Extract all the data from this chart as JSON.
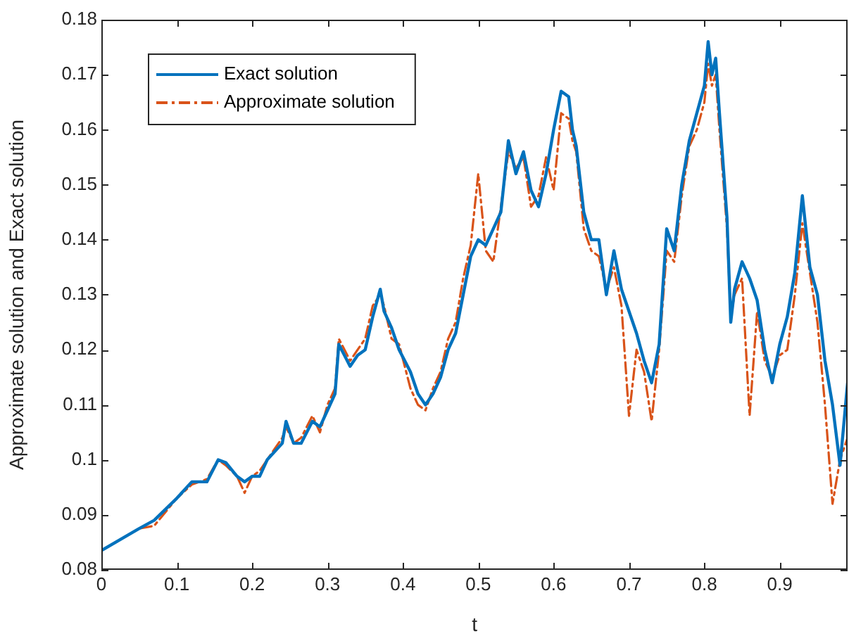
{
  "chart_data": {
    "type": "line",
    "xlabel": "t",
    "ylabel": "Approximate solution and Exact solution",
    "xlim": [
      0,
      0.99
    ],
    "xticks": [
      0,
      0.1,
      0.2,
      0.3,
      0.4,
      0.5,
      0.6,
      0.7,
      0.8,
      0.9
    ],
    "ylim": [
      0.08,
      0.18
    ],
    "yticks": [
      0.08,
      0.09,
      0.1,
      0.11,
      0.12,
      0.13,
      0.14,
      0.15,
      0.16,
      0.17,
      0.18
    ],
    "grid": false,
    "legend": "top left",
    "marker": "none",
    "x": [
      0,
      0.05,
      0.07,
      0.1,
      0.12,
      0.14,
      0.155,
      0.165,
      0.18,
      0.19,
      0.2,
      0.21,
      0.22,
      0.24,
      0.245,
      0.255,
      0.265,
      0.28,
      0.29,
      0.3,
      0.31,
      0.315,
      0.33,
      0.34,
      0.35,
      0.36,
      0.37,
      0.375,
      0.385,
      0.395,
      0.41,
      0.42,
      0.43,
      0.44,
      0.45,
      0.46,
      0.47,
      0.48,
      0.49,
      0.5,
      0.51,
      0.52,
      0.53,
      0.54,
      0.55,
      0.56,
      0.57,
      0.58,
      0.59,
      0.6,
      0.61,
      0.62,
      0.625,
      0.63,
      0.64,
      0.65,
      0.66,
      0.67,
      0.68,
      0.69,
      0.7,
      0.71,
      0.72,
      0.73,
      0.74,
      0.75,
      0.76,
      0.77,
      0.78,
      0.79,
      0.8,
      0.805,
      0.81,
      0.815,
      0.82,
      0.83,
      0.835,
      0.84,
      0.85,
      0.86,
      0.87,
      0.88,
      0.89,
      0.9,
      0.91,
      0.92,
      0.93,
      0.94,
      0.95,
      0.96,
      0.97,
      0.98,
      0.99
    ],
    "series": [
      {
        "name": "Exact solution",
        "color": "#0072bd",
        "line_style": "solid",
        "values": [
          0.0835,
          0.0875,
          0.089,
          0.093,
          0.096,
          0.096,
          0.1,
          0.0995,
          0.097,
          0.096,
          0.097,
          0.097,
          0.1,
          0.103,
          0.107,
          0.103,
          0.103,
          0.107,
          0.106,
          0.109,
          0.112,
          0.121,
          0.117,
          0.119,
          0.12,
          0.126,
          0.131,
          0.127,
          0.124,
          0.12,
          0.116,
          0.112,
          0.11,
          0.112,
          0.115,
          0.12,
          0.123,
          0.13,
          0.137,
          0.14,
          0.139,
          0.142,
          0.145,
          0.158,
          0.152,
          0.156,
          0.149,
          0.146,
          0.152,
          0.16,
          0.167,
          0.166,
          0.16,
          0.157,
          0.145,
          0.14,
          0.14,
          0.13,
          0.138,
          0.131,
          0.127,
          0.123,
          0.118,
          0.114,
          0.121,
          0.142,
          0.138,
          0.15,
          0.158,
          0.163,
          0.168,
          0.176,
          0.17,
          0.173,
          0.163,
          0.144,
          0.125,
          0.131,
          0.136,
          0.133,
          0.129,
          0.12,
          0.114,
          0.121,
          0.126,
          0.134,
          0.148,
          0.135,
          0.13,
          0.118,
          0.11,
          0.099,
          0.114
        ]
      },
      {
        "name": "Approximate solution",
        "color": "#d95319",
        "line_style": "dashdot",
        "values": [
          0.0835,
          0.0875,
          0.088,
          0.093,
          0.0955,
          0.0965,
          0.1,
          0.099,
          0.097,
          0.094,
          0.097,
          0.098,
          0.1,
          0.104,
          0.106,
          0.103,
          0.104,
          0.108,
          0.105,
          0.11,
          0.113,
          0.122,
          0.118,
          0.12,
          0.122,
          0.128,
          0.13,
          0.128,
          0.122,
          0.121,
          0.113,
          0.11,
          0.109,
          0.113,
          0.116,
          0.122,
          0.125,
          0.133,
          0.139,
          0.152,
          0.138,
          0.136,
          0.146,
          0.156,
          0.153,
          0.155,
          0.146,
          0.148,
          0.155,
          0.149,
          0.163,
          0.162,
          0.158,
          0.156,
          0.142,
          0.138,
          0.137,
          0.131,
          0.135,
          0.128,
          0.108,
          0.12,
          0.116,
          0.107,
          0.12,
          0.138,
          0.136,
          0.148,
          0.157,
          0.16,
          0.165,
          0.172,
          0.168,
          0.17,
          0.16,
          0.142,
          0.126,
          0.13,
          0.133,
          0.108,
          0.127,
          0.118,
          0.115,
          0.119,
          0.12,
          0.13,
          0.143,
          0.134,
          0.125,
          0.11,
          0.092,
          0.1,
          0.104
        ]
      }
    ]
  }
}
